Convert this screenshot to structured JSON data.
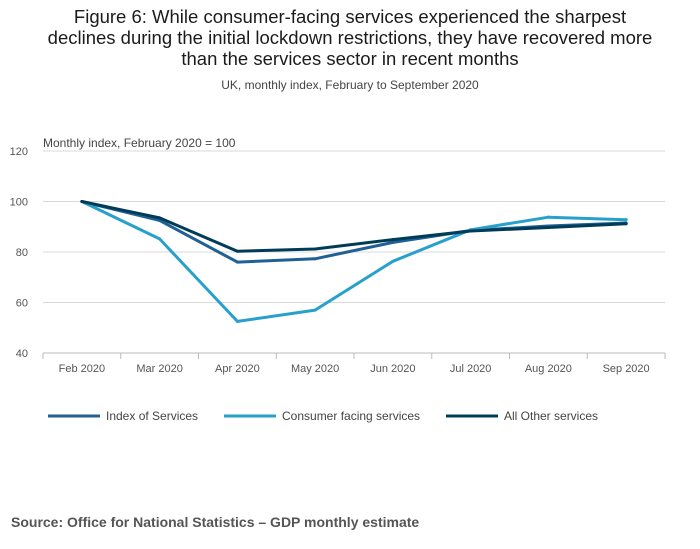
{
  "header": {
    "title_lines": [
      "Figure 6: While consumer-facing services experienced the sharpest",
      "declines during the initial lockdown restrictions, they have recovered more",
      "than the services sector in recent months"
    ],
    "subtitle": "UK, monthly index, February to September 2020"
  },
  "footer": {
    "source": "Source: Office for National Statistics – GDP monthly estimate"
  },
  "chart_data": {
    "type": "line",
    "title": "Figure 6: While consumer-facing services experienced the sharpest declines during the initial lockdown restrictions, they have recovered more than the services sector in recent months",
    "subtitle": "UK, monthly index, February to September 2020",
    "ylabel": "Monthly index, February 2020 = 100",
    "xlabel": "",
    "categories": [
      "Feb 2020",
      "Mar 2020",
      "Apr 2020",
      "May 2020",
      "Jun 2020",
      "Jul 2020",
      "Aug 2020",
      "Sep 2020"
    ],
    "ylim": [
      40,
      120
    ],
    "yticks": [
      40,
      60,
      80,
      100,
      120
    ],
    "grid": true,
    "legend_position": "bottom-left",
    "series": [
      {
        "name": "Index of Services",
        "color": "#206095",
        "values": [
          100,
          92.5,
          76,
          77.3,
          83.8,
          88.5,
          90.3,
          91.5
        ]
      },
      {
        "name": "Consumer facing services",
        "color": "#27a0cc",
        "values": [
          100,
          85.2,
          52.5,
          57,
          76.3,
          88.8,
          93.8,
          92.8
        ]
      },
      {
        "name": "All Other services",
        "color": "#003c57",
        "values": [
          100,
          93.5,
          80.3,
          81.2,
          84.9,
          88.3,
          89.7,
          91.2
        ]
      }
    ]
  }
}
